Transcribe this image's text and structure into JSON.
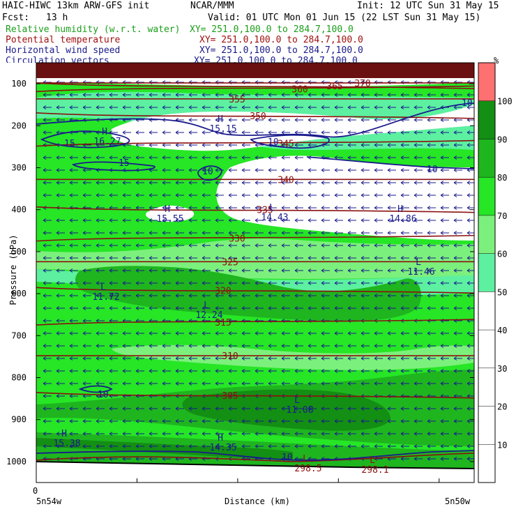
{
  "header": {
    "title": "HAIC-HIWC 13km ARW-GFS init",
    "org": "NCAR/MMM",
    "init": "Init: 12 UTC Sun 31 May 15",
    "fcst_label": "Fcst:",
    "fcst_value": "13 h",
    "valid": "Valid: 01 UTC Mon 01 Jun 15 (22 LST Sun 31 May 15)"
  },
  "legend": [
    {
      "name": "Relative humidity (w.r.t. water)",
      "xy": "XY= 251.0,100.0 to 284.7,100.0",
      "color": "#1a9e1a"
    },
    {
      "name": "Potential temperature",
      "xy": "XY= 251.0,100.0 to 284.7,100.0",
      "color": "#a01010"
    },
    {
      "name": "Horizontal wind speed",
      "xy": "XY= 251.0,100.0 to 284.7,100.0",
      "color": "#1a1a8c"
    },
    {
      "name": "Circulation vectors",
      "xy": "XY= 251.0,100.0 to 284.7,100.0",
      "color": "#1a1a8c"
    }
  ],
  "colorbar": {
    "unit": "%",
    "levels": [
      0,
      10,
      20,
      30,
      40,
      50,
      60,
      70,
      80,
      90,
      100
    ],
    "labels": [
      "10",
      "20",
      "30",
      "40",
      "50",
      "60",
      "70",
      "80",
      "90",
      "100"
    ],
    "colors": [
      "#ffffff",
      "#ffffff",
      "#ffffff",
      "#ffffff",
      "#ffffff",
      "#5cf0a0",
      "#7cf07c",
      "#26e626",
      "#1fb51f",
      "#138f13",
      "#ff7070"
    ]
  },
  "chart_data": {
    "type": "heatmap",
    "title": "HAIC-HIWC 13km ARW-GFS init",
    "xlabel": "Distance (km)",
    "ylabel": "Pressure (hPa)",
    "x_ticks": [
      "0"
    ],
    "x_endpoints": [
      "5n54w",
      "5n50w"
    ],
    "y_ticks": [
      "100",
      "200",
      "300",
      "400",
      "500",
      "600",
      "700",
      "800",
      "900",
      "1000"
    ],
    "y_range": [
      50,
      1050
    ],
    "theta_contours": [
      {
        "label": "305",
        "p": 842
      },
      {
        "label": "310",
        "p": 748
      },
      {
        "label": "315",
        "p": 668
      },
      {
        "label": "320",
        "p": 592
      },
      {
        "label": "325",
        "p": 524
      },
      {
        "label": "330",
        "p": 468
      },
      {
        "label": "335",
        "p": 400
      },
      {
        "label": "340",
        "p": 328
      },
      {
        "label": "345",
        "p": 242
      },
      {
        "label": "350",
        "p": 176
      },
      {
        "label": "355",
        "p": 136
      },
      {
        "label": "360",
        "p": 112
      },
      {
        "label": "365",
        "p": 105
      },
      {
        "label": "370",
        "p": 98
      }
    ],
    "annotations": [
      {
        "text": "H",
        "sub": "16.27"
      },
      {
        "text": "H",
        "sub": "15.15"
      },
      {
        "text": "H",
        "sub": "15.55"
      },
      {
        "text": "L",
        "sub": "14.43"
      },
      {
        "text": "H",
        "sub": "14.86"
      },
      {
        "text": "L",
        "sub": "11.46"
      },
      {
        "text": "L",
        "sub": "11.72"
      },
      {
        "text": "L",
        "sub": "12.24"
      },
      {
        "text": "L",
        "sub": "11.08"
      },
      {
        "text": "H",
        "sub": "15.38"
      },
      {
        "text": "H",
        "sub": "14.35"
      },
      {
        "text": "L",
        "sub": "298.5"
      },
      {
        "text": "L",
        "sub": "298.1"
      }
    ],
    "wind_contours": [
      "10",
      "15",
      "10",
      "10",
      "15",
      "10",
      "10",
      "10"
    ],
    "wind_direction": "westward"
  }
}
